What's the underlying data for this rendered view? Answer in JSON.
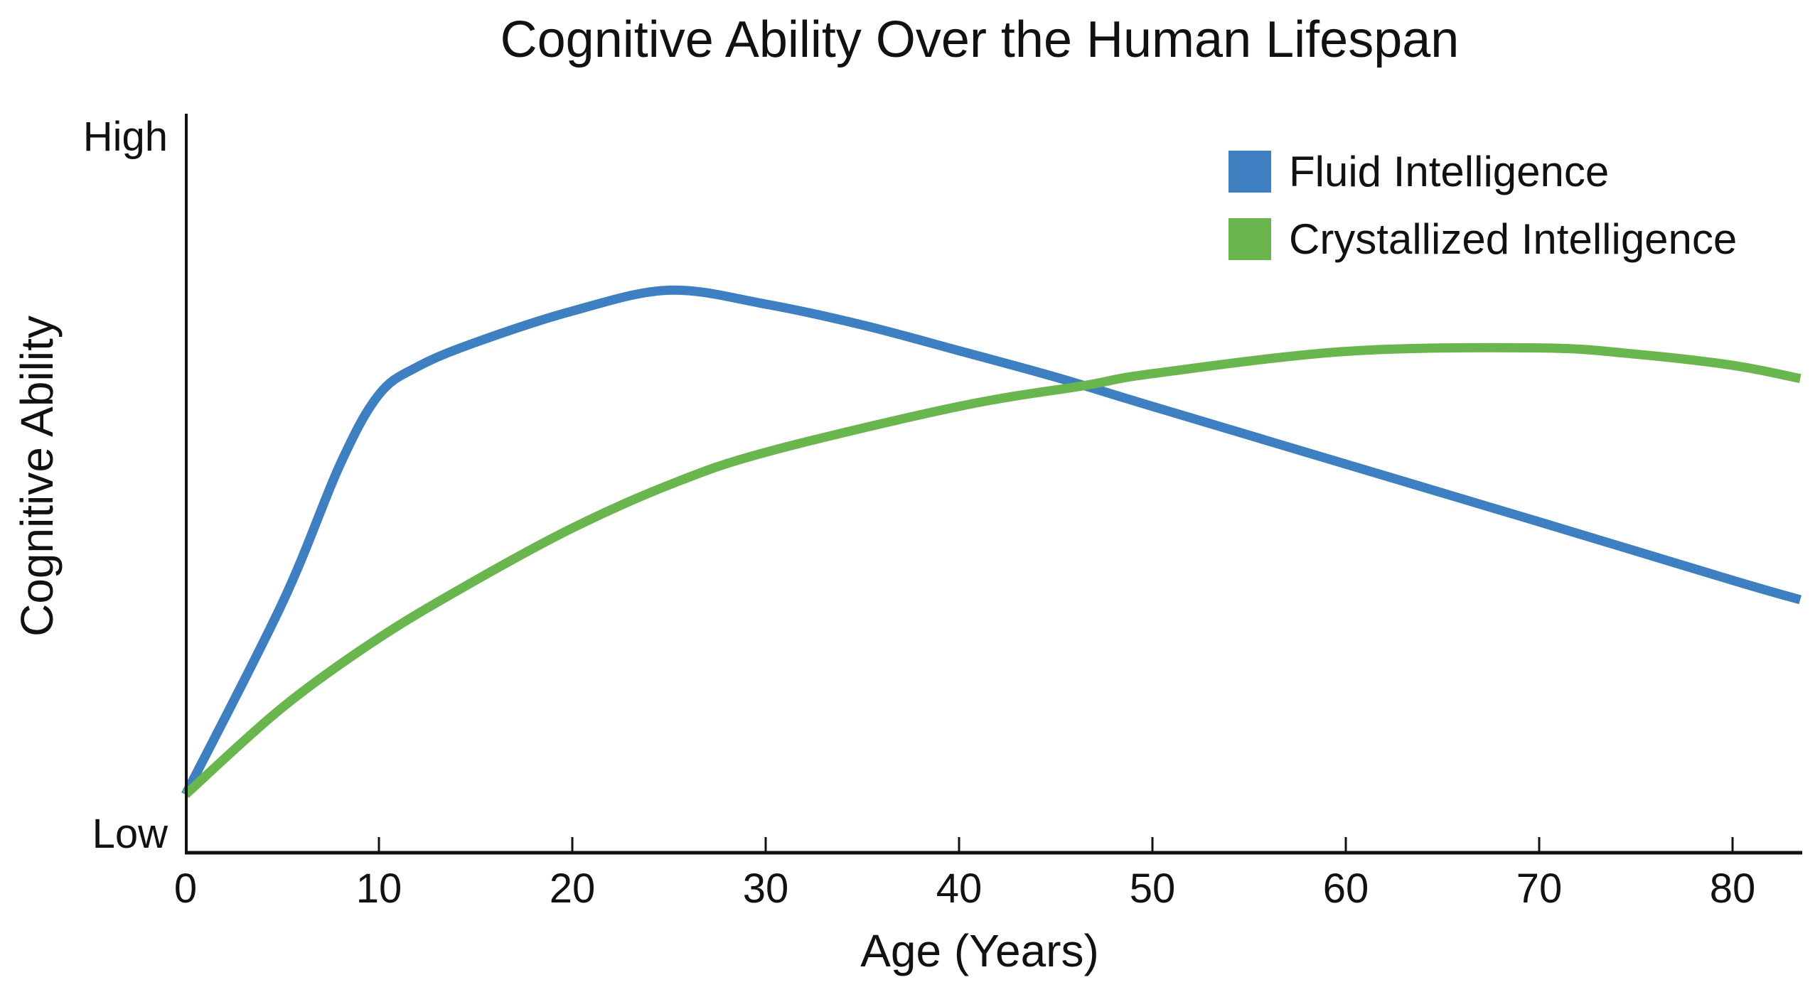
{
  "chart_data": {
    "type": "line",
    "title": "Cognitive Ability Over the Human Lifespan",
    "xlabel": "Age (Years)",
    "ylabel": "Cognitive Ability",
    "xlim": [
      0,
      83.5
    ],
    "ylim": [
      0,
      10
    ],
    "x_ticks": [
      0,
      10,
      20,
      30,
      40,
      50,
      60,
      70,
      80
    ],
    "y_tick_labels": [
      {
        "value": 0,
        "label": "Low"
      },
      {
        "value": 10,
        "label": "High"
      }
    ],
    "grid": false,
    "legend_position": "top-right",
    "series": [
      {
        "name": "Fluid Intelligence",
        "color": "#3d7fc1",
        "x": [
          0,
          5,
          8,
          10,
          12,
          15,
          20,
          25,
          30,
          35,
          40,
          45,
          50,
          60,
          70,
          80,
          83.5
        ],
        "y": [
          0.55,
          3.3,
          5.3,
          6.3,
          6.7,
          7.05,
          7.5,
          7.8,
          7.6,
          7.3,
          6.93,
          6.55,
          6.13,
          5.3,
          4.47,
          3.63,
          3.35
        ]
      },
      {
        "name": "Crystallized Intelligence",
        "color": "#6ab64e",
        "x": [
          0,
          5,
          10,
          15,
          20,
          25,
          30,
          40,
          46.5,
          50,
          60,
          70,
          75,
          80,
          83.5
        ],
        "y": [
          0.55,
          1.8,
          2.8,
          3.63,
          4.38,
          5.0,
          5.47,
          6.13,
          6.43,
          6.6,
          6.92,
          6.97,
          6.88,
          6.72,
          6.53
        ]
      }
    ]
  }
}
